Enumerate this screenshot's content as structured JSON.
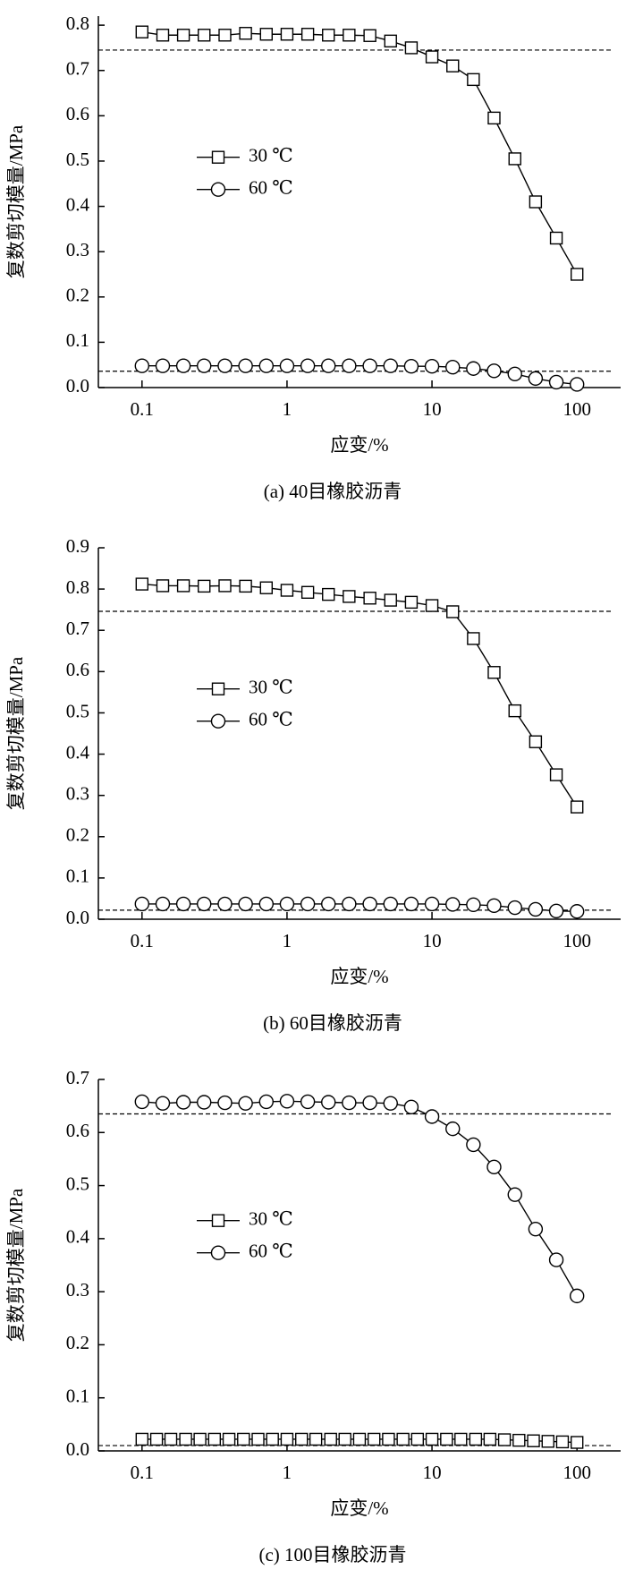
{
  "chart_data": [
    {
      "type": "line",
      "xscale": "log",
      "xlabel": "应变/%",
      "ylabel": "复数剪切模量/MPa",
      "caption": "(a) 40目橡胶沥青",
      "xlim": [
        0.05,
        200
      ],
      "xticks": [
        0.1,
        1,
        10,
        100
      ],
      "ylim": [
        0,
        0.82
      ],
      "yticks": [
        {
          "value": 0,
          "label": "0.0"
        },
        0.1,
        0.2,
        0.3,
        0.4,
        0.5,
        0.6,
        0.7,
        0.8
      ],
      "reference_lines": [
        0.745,
        0.036
      ],
      "series": [
        {
          "name": "30 ℃",
          "marker": "square",
          "color": "#000000",
          "x": [
            0.1,
            0.139,
            0.193,
            0.268,
            0.373,
            0.518,
            0.72,
            1,
            1.39,
            1.93,
            2.68,
            3.73,
            5.18,
            7.2,
            10,
            13.9,
            19.3,
            26.8,
            37.3,
            51.8,
            72,
            100
          ],
          "values": [
            0.785,
            0.778,
            0.778,
            0.778,
            0.778,
            0.782,
            0.78,
            0.78,
            0.78,
            0.778,
            0.778,
            0.777,
            0.765,
            0.75,
            0.73,
            0.71,
            0.68,
            0.595,
            0.505,
            0.41,
            0.33,
            0.25
          ]
        },
        {
          "name": "60 ℃",
          "marker": "circle",
          "color": "#000000",
          "x": [
            0.1,
            0.139,
            0.193,
            0.268,
            0.373,
            0.518,
            0.72,
            1,
            1.39,
            1.93,
            2.68,
            3.73,
            5.18,
            7.2,
            10,
            13.9,
            19.3,
            26.8,
            37.3,
            51.8,
            72,
            100
          ],
          "values": [
            0.048,
            0.048,
            0.048,
            0.048,
            0.048,
            0.048,
            0.048,
            0.048,
            0.048,
            0.048,
            0.048,
            0.048,
            0.048,
            0.047,
            0.047,
            0.045,
            0.042,
            0.037,
            0.03,
            0.02,
            0.012,
            0.007
          ]
        }
      ]
    },
    {
      "type": "line",
      "xscale": "log",
      "xlabel": "应变/%",
      "ylabel": "复数剪切模量/MPa",
      "caption": "(b) 60目橡胶沥青",
      "xlim": [
        0.05,
        200
      ],
      "xticks": [
        0.1,
        1,
        10,
        100
      ],
      "ylim": [
        0,
        0.9
      ],
      "yticks": [
        {
          "value": 0,
          "label": "0.0"
        },
        0.1,
        0.2,
        0.3,
        0.4,
        0.5,
        0.6,
        0.7,
        0.8,
        0.9
      ],
      "reference_lines": [
        0.746,
        0.022
      ],
      "series": [
        {
          "name": "30 ℃",
          "marker": "square",
          "color": "#000000",
          "x": [
            0.1,
            0.139,
            0.193,
            0.268,
            0.373,
            0.518,
            0.72,
            1,
            1.39,
            1.93,
            2.68,
            3.73,
            5.18,
            7.2,
            10,
            13.9,
            19.3,
            26.8,
            37.3,
            51.8,
            72,
            100
          ],
          "values": [
            0.812,
            0.808,
            0.808,
            0.807,
            0.808,
            0.807,
            0.803,
            0.797,
            0.792,
            0.787,
            0.782,
            0.778,
            0.773,
            0.768,
            0.76,
            0.745,
            0.68,
            0.598,
            0.505,
            0.43,
            0.35,
            0.272
          ]
        },
        {
          "name": "60 ℃",
          "marker": "circle",
          "color": "#000000",
          "x": [
            0.1,
            0.139,
            0.193,
            0.268,
            0.373,
            0.518,
            0.72,
            1,
            1.39,
            1.93,
            2.68,
            3.73,
            5.18,
            7.2,
            10,
            13.9,
            19.3,
            26.8,
            37.3,
            51.8,
            72,
            100
          ],
          "values": [
            0.037,
            0.037,
            0.037,
            0.037,
            0.037,
            0.037,
            0.037,
            0.037,
            0.037,
            0.037,
            0.037,
            0.037,
            0.037,
            0.037,
            0.037,
            0.036,
            0.035,
            0.033,
            0.028,
            0.024,
            0.02,
            0.019
          ]
        }
      ]
    },
    {
      "type": "line",
      "xscale": "log",
      "xlabel": "应变/%",
      "ylabel": "复数剪切模量/MPa",
      "caption": "(c) 100目橡胶沥青",
      "xlim": [
        0.05,
        200
      ],
      "xticks": [
        0.1,
        1,
        10,
        100
      ],
      "ylim": [
        0,
        0.7
      ],
      "yticks": [
        {
          "value": 0,
          "label": "0.0"
        },
        0.1,
        0.2,
        0.3,
        0.4,
        0.5,
        0.6,
        0.7
      ],
      "reference_lines": [
        0.635,
        0.01
      ],
      "series": [
        {
          "name": "30 ℃",
          "marker": "square",
          "color": "#000000",
          "x": [
            0.1,
            0.126,
            0.158,
            0.2,
            0.251,
            0.316,
            0.398,
            0.501,
            0.631,
            0.794,
            1,
            1.26,
            1.58,
            2,
            2.51,
            3.16,
            3.98,
            5.01,
            6.31,
            7.94,
            10,
            12.6,
            15.8,
            20,
            25.1,
            31.6,
            39.8,
            50.1,
            63.1,
            79.4,
            100
          ],
          "values": [
            0.022,
            0.022,
            0.022,
            0.022,
            0.022,
            0.022,
            0.022,
            0.022,
            0.022,
            0.022,
            0.022,
            0.022,
            0.022,
            0.022,
            0.022,
            0.022,
            0.022,
            0.022,
            0.022,
            0.022,
            0.022,
            0.022,
            0.022,
            0.022,
            0.022,
            0.021,
            0.02,
            0.019,
            0.018,
            0.017,
            0.016
          ]
        },
        {
          "name": "60 ℃",
          "marker": "circle",
          "color": "#000000",
          "x": [
            0.1,
            0.139,
            0.193,
            0.268,
            0.373,
            0.518,
            0.72,
            1,
            1.39,
            1.93,
            2.68,
            3.73,
            5.18,
            7.2,
            10,
            13.9,
            19.3,
            26.8,
            37.3,
            51.8,
            72,
            100
          ],
          "values": [
            0.658,
            0.655,
            0.657,
            0.657,
            0.656,
            0.655,
            0.658,
            0.659,
            0.658,
            0.657,
            0.656,
            0.656,
            0.655,
            0.648,
            0.63,
            0.607,
            0.577,
            0.535,
            0.483,
            0.418,
            0.36,
            0.292
          ]
        }
      ]
    }
  ]
}
